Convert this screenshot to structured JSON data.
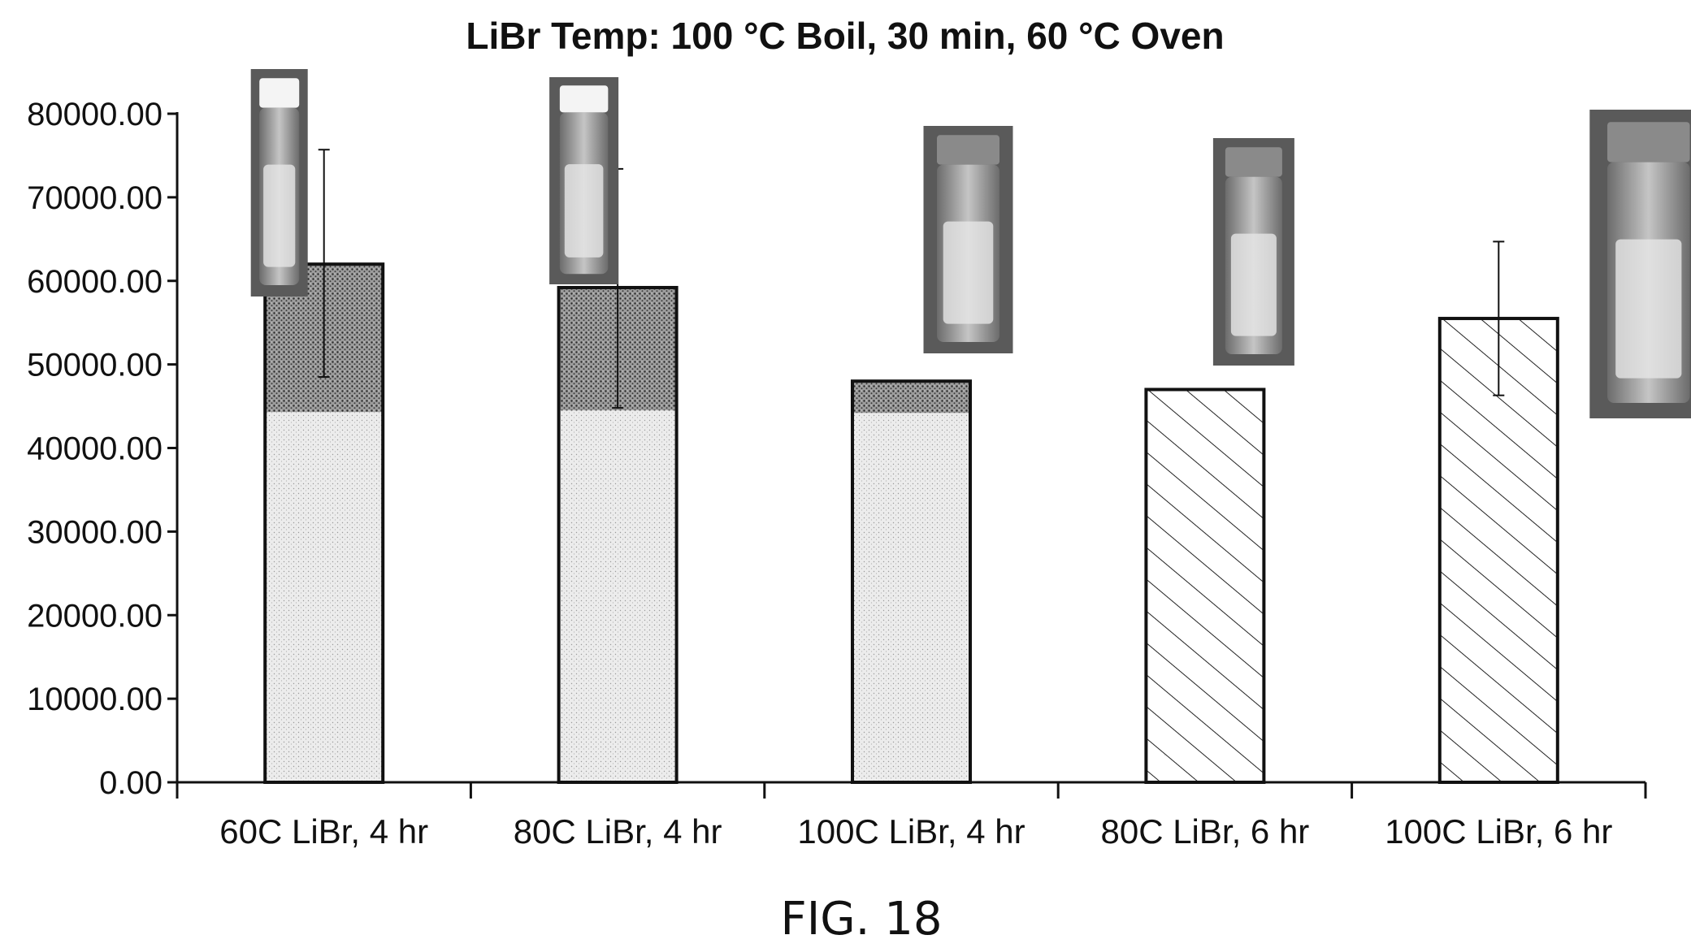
{
  "chart_data": {
    "type": "bar",
    "title": "LiBr Temp: 100 °C Boil, 30 min, 60 °C Oven",
    "xlabel": "",
    "ylabel": "",
    "ylim": [
      0,
      80000
    ],
    "yticks": [
      0,
      10000,
      20000,
      30000,
      40000,
      50000,
      60000,
      70000,
      80000
    ],
    "ytick_labels": [
      "0.00",
      "10000.00",
      "20000.00",
      "30000.00",
      "40000.00",
      "50000.00",
      "60000.00",
      "70000.00",
      "80000.00"
    ],
    "grid": false,
    "legend": "none",
    "categories": [
      "60C LiBr, 4 hr",
      "80C LiBr, 4 hr",
      "100C LiBr, 4 hr",
      "80C LiBr, 6 hr",
      "100C LiBr, 6 hr"
    ],
    "values": [
      62000,
      59200,
      48000,
      47000,
      55500
    ],
    "error_bars": [
      {
        "low": 48500,
        "high": 75700
      },
      {
        "low": 44800,
        "high": 73400
      },
      null,
      null,
      {
        "low": 46300,
        "high": 64700
      }
    ],
    "segments": [
      {
        "lower": 44300,
        "pattern": "stipple"
      },
      {
        "lower": 44500,
        "pattern": "stipple"
      },
      {
        "lower": 44200,
        "pattern": "stipple"
      },
      {
        "lower": 47000,
        "pattern": "hatch"
      },
      {
        "lower": 55500,
        "pattern": "hatch"
      }
    ],
    "vial_photos": [
      "vial-photo-icon",
      "vial-photo-icon",
      "vial-photo-icon",
      "vial-photo-icon",
      "vial-photo-icon"
    ],
    "colors": {
      "bar_outline": "#111111",
      "stipple_light": "#e8e8e8",
      "stipple_dark": "#7a7a7a",
      "photo_bg": "#5a5a5a"
    }
  },
  "figure": {
    "caption": "FIG. 18"
  }
}
